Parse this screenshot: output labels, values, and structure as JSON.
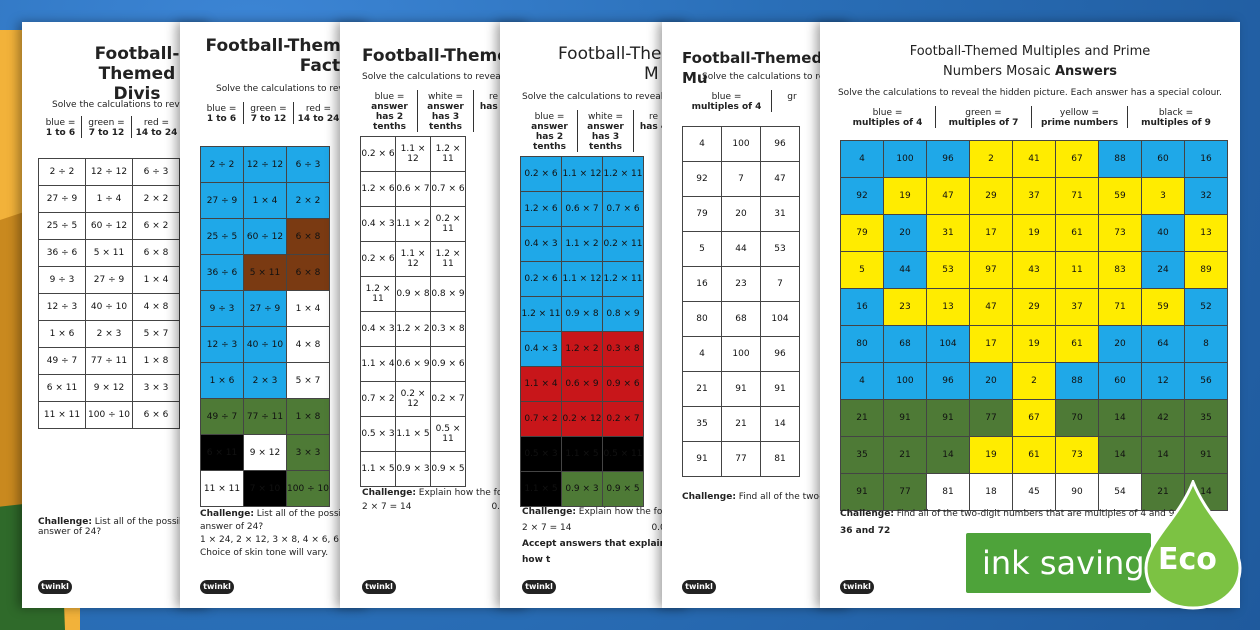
{
  "sheets": [
    {
      "title1": "Football-Themed",
      "title2": "Divis",
      "instruction": "Solve the calculations to revea",
      "key": [
        {
          "color": "blue =",
          "range": "1 to 6"
        },
        {
          "color": "green =",
          "range": "7 to 12"
        },
        {
          "color": "red =",
          "range": "14 to 24"
        }
      ],
      "rows": [
        [
          "2 ÷ 2",
          "12 ÷ 12",
          "6 ÷ 3"
        ],
        [
          "27 ÷ 9",
          "1 ÷ 4",
          "2 × 2"
        ],
        [
          "25 ÷ 5",
          "60 ÷ 12",
          "6 × 2"
        ],
        [
          "36 ÷ 6",
          "5 × 11",
          "6 × 8"
        ],
        [
          "9 ÷ 3",
          "27 ÷ 9",
          "1 × 4"
        ],
        [
          "12 ÷ 3",
          "40 ÷ 10",
          "4 × 8"
        ],
        [
          "1 × 6",
          "2 × 3",
          "5 × 7"
        ],
        [
          "49 ÷ 7",
          "77 ÷ 11",
          "1 × 8"
        ],
        [
          "6 × 11",
          "9 × 12",
          "3 × 3"
        ],
        [
          "11 × 11",
          "100 ÷ 10",
          "6 × 6"
        ]
      ],
      "challenge_label": "Challenge:",
      "challenge": "List all of the possible answer of 24?",
      "logo": "twinkl"
    },
    {
      "title1": "Football-Themed",
      "title2": "Facts",
      "instruction": "Solve the calculations to reve",
      "key": [
        {
          "color": "blue =",
          "range": "1 to 6"
        },
        {
          "color": "green =",
          "range": "7 to 12"
        },
        {
          "color": "red =",
          "range": "14 to 24"
        }
      ],
      "rows": [
        [
          "2 ÷ 2",
          "12 ÷ 12",
          "6 ÷ 3"
        ],
        [
          "27 ÷ 9",
          "1 × 4",
          "2 × 2"
        ],
        [
          "25 ÷ 5",
          "60 ÷ 12",
          "6 × 8"
        ],
        [
          "36 ÷ 6",
          "5 × 11",
          "6 × 8"
        ],
        [
          "9 ÷ 3",
          "27 ÷ 9",
          "1 × 4"
        ],
        [
          "12 ÷ 3",
          "40 ÷ 10",
          "4 × 8"
        ],
        [
          "1 × 6",
          "2 × 3",
          "5 × 7"
        ],
        [
          "49 ÷ 7",
          "77 ÷ 11",
          "1 × 8"
        ],
        [
          "6 × 11",
          "9 × 12",
          "3 × 3"
        ],
        [
          "11 × 11",
          "7 × 10",
          "100 ÷ 10"
        ]
      ],
      "challenge_label": "Challenge:",
      "challenge": "List all of the possible answer of 24?",
      "answer": "1 × 24, 2 × 12, 3 × 8, 4 × 6, 6 × 4,",
      "note": "Choice of skin tone will vary.",
      "logo": "twinkl"
    },
    {
      "title1": "Football-Themed",
      "instruction": "Solve the calculations to reveal th",
      "key": [
        {
          "color": "blue =",
          "range": "answer has 2 tenths"
        },
        {
          "color": "white =",
          "range": "answer has 3 tenths"
        },
        {
          "color": "re",
          "range": "has 4"
        }
      ],
      "rows": [
        [
          "0.2 × 6",
          "1.1 × 12",
          "1.2 × 11"
        ],
        [
          "1.2 × 6",
          "0.6 × 7",
          "0.7 × 6"
        ],
        [
          "0.4 × 3",
          "1.1 × 2",
          "0.2 × 11"
        ],
        [
          "0.2 × 6",
          "1.1 × 12",
          "1.2 × 11"
        ],
        [
          "1.2 × 11",
          "0.9 × 8",
          "0.8 × 9"
        ],
        [
          "0.4 × 3",
          "1.2 × 2",
          "0.3 × 8"
        ],
        [
          "1.1 × 4",
          "0.6 × 9",
          "0.9 × 6"
        ],
        [
          "0.7 × 2",
          "0.2 × 12",
          "0.2 × 7"
        ],
        [
          "0.5 × 3",
          "1.1 × 5",
          "0.5 × 11"
        ],
        [
          "1.1 × 5",
          "0.9 × 3",
          "0.9 × 5"
        ]
      ],
      "challenge_label": "Challenge:",
      "challenge": "Explain how the followi",
      "eq": "2 × 7 = 14",
      "eq2": "0.",
      "logo": "twinkl"
    },
    {
      "title1": "Football-Them",
      "title2": "M",
      "instruction": "Solve the calculations to reveal the",
      "key": [
        {
          "color": "blue =",
          "range": "answer has 2 tenths"
        },
        {
          "color": "white =",
          "range": "answer has 3 tenths"
        },
        {
          "color": "re",
          "range": "has 4"
        }
      ],
      "rows": [
        [
          "0.2 × 6",
          "1.1 × 12",
          "1.2 × 11"
        ],
        [
          "1.2 × 6",
          "0.6 × 7",
          "0.7 × 6"
        ],
        [
          "0.4 × 3",
          "1.1 × 2",
          "0.2 × 11"
        ],
        [
          "0.2 × 6",
          "1.1 × 12",
          "1.2 × 11"
        ],
        [
          "1.2 × 11",
          "0.9 × 8",
          "0.8 × 9"
        ],
        [
          "0.4 × 3",
          "1.2 × 2",
          "0.3 × 8"
        ],
        [
          "1.1 × 4",
          "0.6 × 9",
          "0.9 × 6"
        ],
        [
          "0.7 × 2",
          "0.2 × 12",
          "0.2 × 7"
        ],
        [
          "0.5 × 3",
          "1.1 × 5",
          "0.5 × 11"
        ],
        [
          "1.1 × 5",
          "0.9 × 3",
          "0.9 × 5"
        ]
      ],
      "challenge_label": "Challenge:",
      "challenge": "Explain how the followi",
      "eq": "2 × 7 = 14",
      "eq2": "0.0",
      "accept": "Accept answers that explain how t",
      "logo": "twinkl"
    },
    {
      "title1": "Football-Themed Mu",
      "instruction": "Solve the calculations to reve",
      "key": [
        {
          "color": "blue =",
          "range": "multiples of 4"
        },
        {
          "color": "gr",
          "range": ""
        }
      ],
      "rows": [
        [
          "4",
          "100",
          "96"
        ],
        [
          "92",
          "7",
          "47"
        ],
        [
          "79",
          "20",
          "31"
        ],
        [
          "5",
          "44",
          "53"
        ],
        [
          "16",
          "23",
          "7"
        ],
        [
          "80",
          "68",
          "104"
        ],
        [
          "4",
          "100",
          "96"
        ],
        [
          "21",
          "91",
          "91"
        ],
        [
          "35",
          "21",
          "14"
        ],
        [
          "91",
          "77",
          "81"
        ]
      ],
      "challenge_label": "Challenge:",
      "challenge": "Find all of the two-digi",
      "logo": "twinkl"
    },
    {
      "title1": "Football-Themed Multiples and Prime",
      "title2a": "Numbers Mosaic",
      "title2b": "Answers",
      "instruction": "Solve the calculations to reveal the hidden picture. Each answer has a special colour.",
      "key": [
        {
          "color": "blue =",
          "range": "multiples of 4"
        },
        {
          "color": "green =",
          "range": "multiples of 7"
        },
        {
          "color": "yellow =",
          "range": "prime numbers"
        },
        {
          "color": "black =",
          "range": "multiples of 9"
        }
      ],
      "rows": [
        [
          "4",
          "100",
          "96",
          "2",
          "41",
          "67",
          "88",
          "60",
          "16"
        ],
        [
          "92",
          "19",
          "47",
          "29",
          "37",
          "71",
          "59",
          "3",
          "32"
        ],
        [
          "79",
          "20",
          "31",
          "17",
          "19",
          "61",
          "73",
          "40",
          "13"
        ],
        [
          "5",
          "44",
          "53",
          "97",
          "43",
          "11",
          "83",
          "24",
          "89"
        ],
        [
          "16",
          "23",
          "13",
          "47",
          "29",
          "37",
          "71",
          "59",
          "52"
        ],
        [
          "80",
          "68",
          "104",
          "17",
          "19",
          "61",
          "20",
          "64",
          "8"
        ],
        [
          "4",
          "100",
          "96",
          "20",
          "2",
          "88",
          "60",
          "12",
          "56"
        ],
        [
          "21",
          "91",
          "91",
          "77",
          "67",
          "70",
          "14",
          "42",
          "35"
        ],
        [
          "35",
          "21",
          "14",
          "19",
          "61",
          "73",
          "14",
          "14",
          "91"
        ],
        [
          "91",
          "77",
          "81",
          "18",
          "45",
          "90",
          "54",
          "21",
          "14"
        ]
      ],
      "colors": [
        [
          "b",
          "b",
          "b",
          "y",
          "y",
          "y",
          "b",
          "b",
          "b"
        ],
        [
          "b",
          "y",
          "y",
          "y",
          "y",
          "y",
          "y",
          "y",
          "b"
        ],
        [
          "y",
          "b",
          "y",
          "y",
          "y",
          "y",
          "y",
          "b",
          "y"
        ],
        [
          "y",
          "b",
          "y",
          "y",
          "y",
          "y",
          "y",
          "b",
          "y"
        ],
        [
          "b",
          "y",
          "y",
          "y",
          "y",
          "y",
          "y",
          "y",
          "b"
        ],
        [
          "b",
          "b",
          "b",
          "y",
          "y",
          "y",
          "b",
          "b",
          "b"
        ],
        [
          "b",
          "b",
          "b",
          "b",
          "y",
          "b",
          "b",
          "b",
          "b"
        ],
        [
          "g",
          "g",
          "g",
          "g",
          "y",
          "g",
          "g",
          "g",
          "g"
        ],
        [
          "g",
          "g",
          "g",
          "y",
          "y",
          "y",
          "g",
          "g",
          "g"
        ],
        [
          "g",
          "g",
          "k",
          "k",
          "k",
          "k",
          "k",
          "g",
          "g"
        ]
      ],
      "challenge_label": "Challenge:",
      "challenge": "Find all of the two-digit numbers that are multiples of 4 and 9.",
      "answer": "36 and 72",
      "logo": "twinkl"
    }
  ],
  "badge": {
    "text": "ink saving",
    "eco": "Eco"
  },
  "palette": {
    "blue": "#1fa8e8",
    "yellow": "#ffec00",
    "green": "#4e7a36",
    "black": "#000000",
    "red": "#c8161a",
    "brown": "#7a3a12"
  }
}
